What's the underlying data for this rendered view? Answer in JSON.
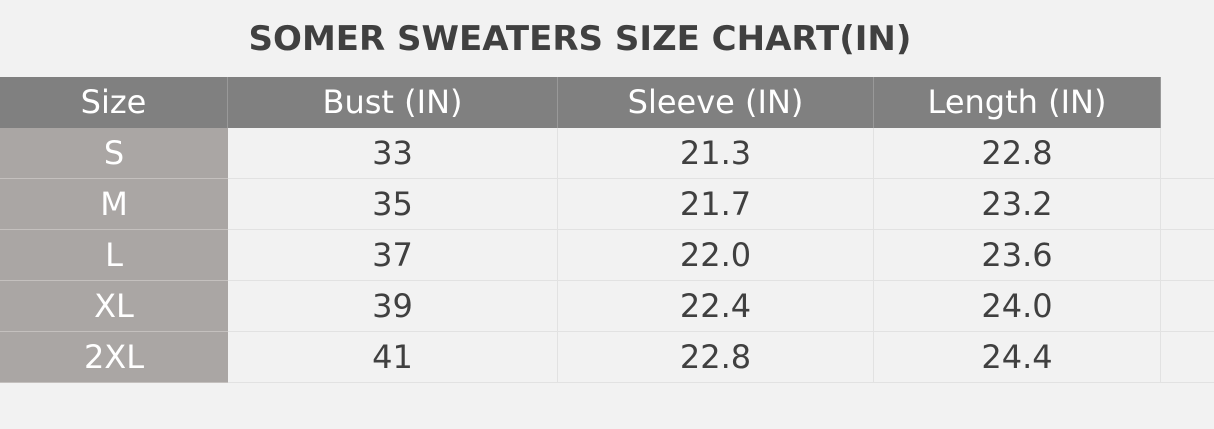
{
  "title": "SOMER  SWEATERS SIZE CHART(IN)",
  "table": {
    "header": [
      "Size",
      "Bust (IN)",
      "Sleeve (IN)",
      "Length (IN)"
    ],
    "rows": [
      [
        "S",
        "33",
        "21.3",
        "22.8"
      ],
      [
        "M",
        "35",
        "21.7",
        "23.2"
      ],
      [
        "L",
        "37",
        "22.0",
        "23.6"
      ],
      [
        "XL",
        "39",
        "22.4",
        "24.0"
      ],
      [
        "2XL",
        "41",
        "22.8",
        "24.4"
      ]
    ]
  }
}
